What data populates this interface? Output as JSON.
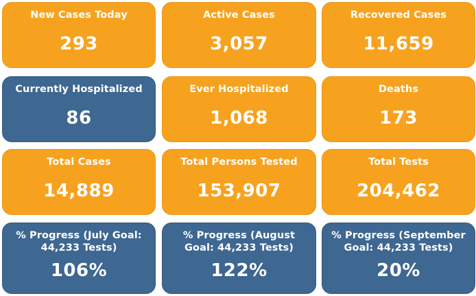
{
  "cards": [
    {
      "label": "New Cases Today",
      "value": "293",
      "color": "#f7a21e"
    },
    {
      "label": "Active Cases",
      "value": "3,057",
      "color": "#f7a21e"
    },
    {
      "label": "Recovered Cases",
      "value": "11,659",
      "color": "#f7a21e"
    },
    {
      "label": "Currently Hospitalized",
      "value": "86",
      "color": "#3e6791"
    },
    {
      "label": "Ever Hospitalized",
      "value": "1,068",
      "color": "#f7a21e"
    },
    {
      "label": "Deaths",
      "value": "173",
      "color": "#f7a21e"
    },
    {
      "label": "Total Cases",
      "value": "14,889",
      "color": "#f7a21e"
    },
    {
      "label": "Total Persons Tested",
      "value": "153,907",
      "color": "#f7a21e"
    },
    {
      "label": "Total Tests",
      "value": "204,462",
      "color": "#f7a21e"
    },
    {
      "label": "% Progress (July Goal: 44,233 Tests)",
      "value": "106%",
      "color": "#3e6791"
    },
    {
      "label": "% Progress (August Goal: 44,233 Tests)",
      "value": "122%",
      "color": "#3e6791"
    },
    {
      "label": "% Progress (September Goal: 44,233 Tests)",
      "value": "20%",
      "color": "#3e6791"
    }
  ]
}
